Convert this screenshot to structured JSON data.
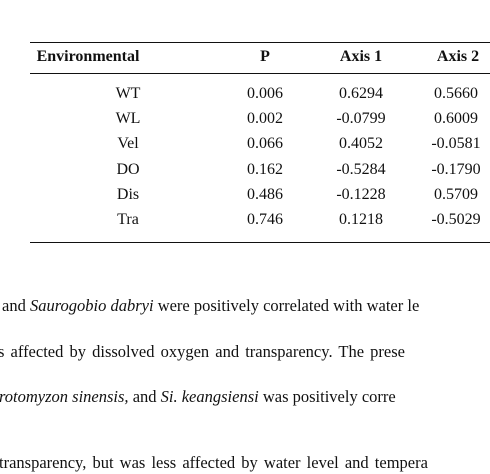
{
  "table": {
    "header": [
      "Environmental",
      "P",
      "Axis 1",
      "Axis 2"
    ],
    "rows": [
      [
        "WT",
        "0.006",
        "0.6294",
        "0.5660"
      ],
      [
        "WL",
        "0.002",
        "-0.0799",
        "0.6009"
      ],
      [
        "Vel",
        "0.066",
        "0.4052",
        "-0.0581"
      ],
      [
        "DO",
        "0.162",
        "-0.5284",
        "-0.1790"
      ],
      [
        "Dis",
        "0.486",
        "-0.1228",
        "0.5709"
      ],
      [
        "Tra",
        "0.746",
        "0.1218",
        "-0.5029"
      ]
    ]
  },
  "paragraph": {
    "lines": [
      [
        "and ",
        "Saurogobio dabryi",
        " were positively correlated with water le"
      ],
      [
        "s affected by dissolved oxygen and transparency. The prese"
      ],
      [
        "rotomyzon sinensis,",
        " and ",
        "Si. keangsiensi",
        " was positively corre"
      ],
      [
        "transparency, but was less affected by water level and tempera"
      ]
    ]
  }
}
